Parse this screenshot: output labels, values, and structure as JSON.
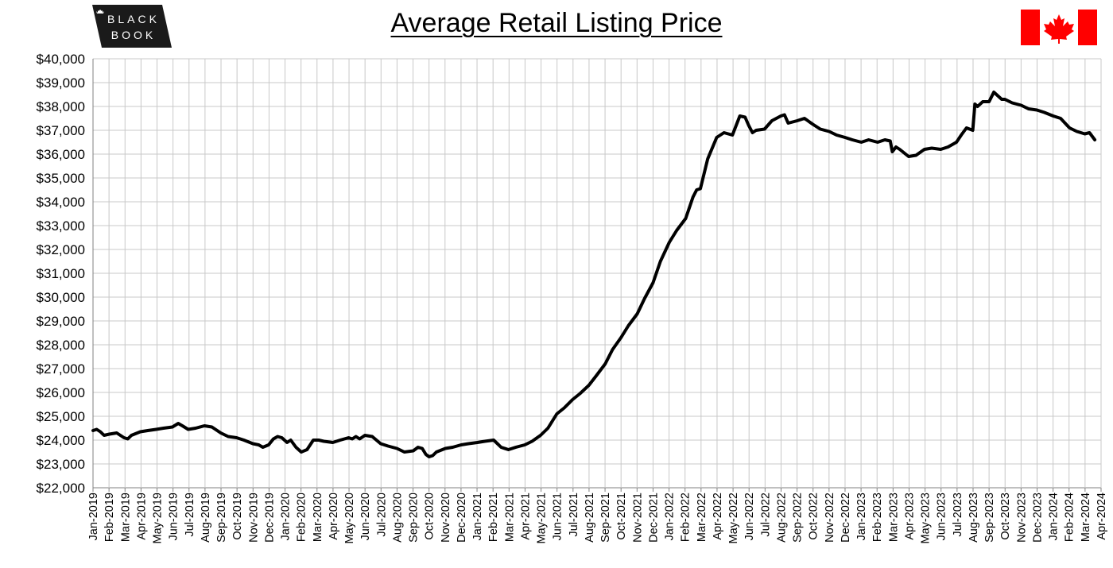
{
  "logo": {
    "line1": "BLACK",
    "line2": "BOOK",
    "icon": "maple-leaf-icon"
  },
  "flag": {
    "icon": "canada-flag-icon",
    "colors": {
      "red": "#ff0000",
      "white": "#ffffff"
    }
  },
  "chart_data": {
    "type": "line",
    "title": "Average Retail Listing Price",
    "xlabel": "",
    "ylabel": "",
    "ylim": [
      22000,
      40000
    ],
    "ytick_step": 1000,
    "ytick_labels": [
      "$22,000",
      "$23,000",
      "$24,000",
      "$25,000",
      "$26,000",
      "$27,000",
      "$28,000",
      "$29,000",
      "$30,000",
      "$31,000",
      "$32,000",
      "$33,000",
      "$34,000",
      "$35,000",
      "$36,000",
      "$37,000",
      "$38,000",
      "$39,000",
      "$40,000"
    ],
    "xtick_labels": [
      "Jan-2019",
      "Feb-2019",
      "Mar-2019",
      "Apr-2019",
      "May-2019",
      "Jun-2019",
      "Jul-2019",
      "Aug-2019",
      "Sep-2019",
      "Oct-2019",
      "Nov-2019",
      "Dec-2019",
      "Jan-2020",
      "Feb-2020",
      "Mar-2020",
      "Apr-2020",
      "May-2020",
      "Jun-2020",
      "Jul-2020",
      "Aug-2020",
      "Sep-2020",
      "Oct-2020",
      "Nov-2020",
      "Dec-2020",
      "Jan-2021",
      "Feb-2021",
      "Mar-2021",
      "Apr-2021",
      "May-2021",
      "Jun-2021",
      "Jul-2021",
      "Aug-2021",
      "Sep-2021",
      "Oct-2021",
      "Nov-2021",
      "Dec-2021",
      "Jan-2022",
      "Feb-2022",
      "Mar-2022",
      "Apr-2022",
      "May-2022",
      "Jun-2022",
      "Jul-2022",
      "Aug-2022",
      "Sep-2022",
      "Oct-2022",
      "Nov-2022",
      "Dec-2022",
      "Jan-2023",
      "Feb-2023",
      "Mar-2023",
      "Apr-2023",
      "May-2023",
      "Jun-2023",
      "Jul-2023",
      "Aug-2023",
      "Sep-2023",
      "Oct-2023",
      "Nov-2023",
      "Dec-2023",
      "Jan-2024",
      "Feb-2024",
      "Mar-2024",
      "Apr-2024"
    ],
    "grid": true,
    "line_color": "#000000",
    "grid_color": "#c8c8c8",
    "series": [
      {
        "x": [
          "2019-01-01",
          "2019-01-08",
          "2019-01-15",
          "2019-01-22",
          "2019-02-01",
          "2019-02-15",
          "2019-03-01",
          "2019-03-08",
          "2019-03-15",
          "2019-04-01",
          "2019-04-15",
          "2019-05-01",
          "2019-05-15",
          "2019-06-01",
          "2019-06-12",
          "2019-06-20",
          "2019-07-01",
          "2019-07-15",
          "2019-08-01",
          "2019-08-15",
          "2019-09-01",
          "2019-09-15",
          "2019-10-01",
          "2019-10-15",
          "2019-11-01",
          "2019-11-12",
          "2019-11-20",
          "2019-12-01",
          "2019-12-10",
          "2019-12-18",
          "2019-12-26",
          "2020-01-05",
          "2020-01-12",
          "2020-01-22",
          "2020-02-01",
          "2020-02-12",
          "2020-02-24",
          "2020-03-05",
          "2020-03-15",
          "2020-04-01",
          "2020-04-15",
          "2020-05-01",
          "2020-05-08",
          "2020-05-15",
          "2020-05-22",
          "2020-06-01",
          "2020-06-15",
          "2020-07-01",
          "2020-07-15",
          "2020-08-01",
          "2020-08-15",
          "2020-09-01",
          "2020-09-10",
          "2020-09-18",
          "2020-09-25",
          "2020-10-01",
          "2020-10-08",
          "2020-10-15",
          "2020-11-01",
          "2020-11-15",
          "2020-12-01",
          "2020-12-15",
          "2021-01-01",
          "2021-01-15",
          "2021-02-01",
          "2021-02-08",
          "2021-02-15",
          "2021-03-01",
          "2021-03-08",
          "2021-03-15",
          "2021-04-01",
          "2021-04-15",
          "2021-05-01",
          "2021-05-15",
          "2021-06-01",
          "2021-06-15",
          "2021-07-01",
          "2021-07-15",
          "2021-08-01",
          "2021-08-15",
          "2021-09-01",
          "2021-09-15",
          "2021-10-01",
          "2021-10-15",
          "2021-11-01",
          "2021-11-15",
          "2021-12-01",
          "2021-12-15",
          "2022-01-01",
          "2022-01-15",
          "2022-02-01",
          "2022-02-15",
          "2022-02-22",
          "2022-03-01",
          "2022-03-15",
          "2022-04-01",
          "2022-04-15",
          "2022-05-01",
          "2022-05-15",
          "2022-05-25",
          "2022-06-01",
          "2022-06-08",
          "2022-06-15",
          "2022-07-01",
          "2022-07-15",
          "2022-08-01",
          "2022-08-08",
          "2022-08-15",
          "2022-09-01",
          "2022-09-15",
          "2022-10-01",
          "2022-10-15",
          "2022-11-01",
          "2022-11-15",
          "2022-12-01",
          "2022-12-15",
          "2023-01-01",
          "2023-01-15",
          "2023-02-01",
          "2023-02-15",
          "2023-02-25",
          "2023-03-01",
          "2023-03-08",
          "2023-03-15",
          "2023-04-01",
          "2023-04-15",
          "2023-05-01",
          "2023-05-15",
          "2023-06-01",
          "2023-06-15",
          "2023-07-01",
          "2023-07-10",
          "2023-07-20",
          "2023-08-01",
          "2023-08-05",
          "2023-08-10",
          "2023-08-15",
          "2023-08-20",
          "2023-09-01",
          "2023-09-10",
          "2023-09-15",
          "2023-09-25",
          "2023-10-01",
          "2023-10-15",
          "2023-11-01",
          "2023-11-15",
          "2023-12-01",
          "2023-12-15",
          "2024-01-01",
          "2024-01-15",
          "2024-02-01",
          "2024-02-15",
          "2024-03-01",
          "2024-03-10",
          "2024-03-20"
        ],
        "values": [
          24400,
          24450,
          24350,
          24200,
          24250,
          24300,
          24100,
          24050,
          24200,
          24350,
          24400,
          24450,
          24500,
          24550,
          24700,
          24600,
          24450,
          24500,
          24600,
          24550,
          24300,
          24150,
          24100,
          24000,
          23850,
          23800,
          23700,
          23800,
          24050,
          24150,
          24100,
          23900,
          24000,
          23700,
          23500,
          23600,
          24000,
          24000,
          23950,
          23900,
          24000,
          24100,
          24050,
          24150,
          24050,
          24200,
          24150,
          23850,
          23750,
          23650,
          23500,
          23550,
          23700,
          23650,
          23400,
          23300,
          23350,
          23500,
          23650,
          23700,
          23800,
          23850,
          23900,
          23950,
          24000,
          23850,
          23700,
          23600,
          23650,
          23700,
          23800,
          23950,
          24200,
          24500,
          25100,
          25350,
          25700,
          25950,
          26300,
          26700,
          27200,
          27800,
          28300,
          28800,
          29300,
          29950,
          30600,
          31500,
          32300,
          32800,
          33300,
          34200,
          34500,
          34550,
          35800,
          36700,
          36900,
          36800,
          37600,
          37550,
          37200,
          36900,
          37000,
          37050,
          37400,
          37600,
          37650,
          37300,
          37400,
          37500,
          37250,
          37050,
          36950,
          36800,
          36700,
          36600,
          36500,
          36600,
          36500,
          36600,
          36550,
          36100,
          36300,
          36200,
          35900,
          35950,
          36200,
          36250,
          36200,
          36300,
          36500,
          36800,
          37100,
          37000,
          38100,
          38000,
          38100,
          38200,
          38200,
          38600,
          38500,
          38300,
          38300,
          38150,
          38050,
          37900,
          37850,
          37750,
          37600,
          37500,
          37100,
          36950,
          36850,
          36900,
          36600
        ]
      }
    ]
  }
}
